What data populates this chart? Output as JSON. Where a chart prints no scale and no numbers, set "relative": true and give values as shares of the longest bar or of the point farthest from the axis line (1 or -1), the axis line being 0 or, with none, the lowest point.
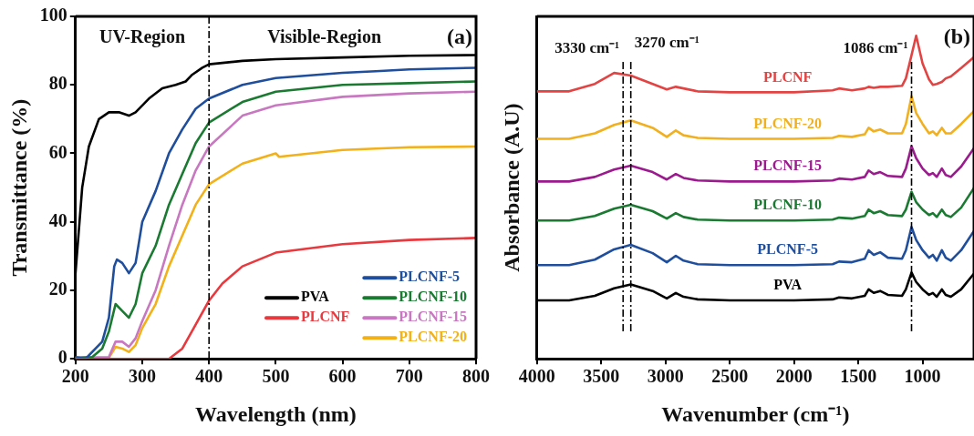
{
  "chart_data": [
    {
      "type": "line",
      "title": "(a)",
      "xlabel": "Wavelength (nm)",
      "ylabel": "Transmittance (%)",
      "xlim": [
        200,
        800
      ],
      "xticks": [
        200,
        300,
        400,
        500,
        600,
        700,
        800
      ],
      "ylim": [
        0,
        100
      ],
      "yticks": [
        0,
        20,
        40,
        60,
        80,
        100
      ],
      "legend": "bottom right",
      "marker": "none",
      "line_style": "solid",
      "ref_lines": [
        {
          "axis": "x",
          "value": 400,
          "line_style": "dashed",
          "color": "#000000"
        }
      ],
      "annotations": [
        "UV-Region",
        "Visible-Region"
      ],
      "series": [
        {
          "name": "PVA",
          "color": "#000000",
          "x": [
            200,
            210,
            220,
            235,
            250,
            265,
            280,
            290,
            310,
            330,
            350,
            365,
            375,
            390,
            400,
            450,
            500,
            600,
            700,
            800
          ],
          "values": [
            25,
            50,
            62,
            70,
            72,
            72,
            71,
            72,
            76,
            79,
            80,
            81,
            83,
            85,
            86,
            87,
            87.5,
            88,
            88.5,
            88.7
          ]
        },
        {
          "name": "PLCNF",
          "color": "#e8393f",
          "x": [
            200,
            340,
            360,
            380,
            400,
            420,
            450,
            500,
            600,
            700,
            800
          ],
          "values": [
            0,
            0,
            3,
            10,
            17,
            22,
            27,
            31,
            33.5,
            34.7,
            35.3
          ]
        },
        {
          "name": "PLCNF-5",
          "color": "#1f4e9c",
          "x": [
            200,
            215,
            240,
            250,
            258,
            262,
            270,
            280,
            290,
            300,
            320,
            340,
            360,
            380,
            400,
            450,
            500,
            600,
            650,
            700,
            800
          ],
          "values": [
            0.5,
            0,
            5,
            12,
            27,
            29,
            28,
            25,
            28,
            40,
            49,
            60,
            67,
            73,
            76,
            80,
            82,
            83.5,
            84,
            84.5,
            85
          ]
        },
        {
          "name": "PLCNF-10",
          "color": "#1a7a32",
          "x": [
            200,
            225,
            240,
            250,
            260,
            270,
            280,
            290,
            300,
            320,
            340,
            360,
            380,
            400,
            450,
            500,
            600,
            700,
            800
          ],
          "values": [
            0.3,
            0.5,
            3,
            8,
            16,
            14,
            12,
            16,
            25,
            33,
            45,
            54,
            63,
            69,
            75,
            78,
            80,
            80.5,
            81
          ]
        },
        {
          "name": "PLCNF-15",
          "color": "#c878c0",
          "x": [
            200,
            250,
            260,
            270,
            280,
            290,
            300,
            320,
            340,
            360,
            380,
            400,
            450,
            500,
            600,
            700,
            800
          ],
          "values": [
            0.3,
            0.5,
            5,
            5,
            3.5,
            6,
            11,
            20,
            33,
            45,
            55,
            62,
            71,
            74,
            76.5,
            77.5,
            78
          ]
        },
        {
          "name": "PLCNF-20",
          "color": "#f2b019",
          "x": [
            200,
            250,
            260,
            270,
            280,
            290,
            300,
            320,
            340,
            360,
            380,
            400,
            450,
            500,
            505,
            600,
            700,
            800
          ],
          "values": [
            0.2,
            0.3,
            3.5,
            3,
            2,
            4,
            9,
            16,
            27,
            36,
            45,
            51,
            57,
            60,
            59,
            61,
            61.8,
            62
          ]
        }
      ]
    },
    {
      "type": "line",
      "title": "(b)",
      "xlabel": "Wavenumber (cm⁻¹)",
      "ylabel": "Absorbance (A.U)",
      "relative": true,
      "xlim": [
        4000,
        600
      ],
      "xticks": [
        4000,
        3500,
        3000,
        2500,
        2000,
        1500,
        1000
      ],
      "legend": false,
      "marker": "none",
      "line_style": "solid",
      "ref_lines": [
        {
          "axis": "x",
          "value": 3330,
          "label": "3330 cm⁻¹",
          "line_style": "dashed",
          "color": "#000000"
        },
        {
          "axis": "x",
          "value": 3270,
          "label": "3270 cm⁻¹",
          "line_style": "dashed",
          "color": "#000000"
        },
        {
          "axis": "x",
          "value": 1086,
          "label": "1086 cm⁻¹",
          "line_style": "dashed",
          "color": "#000000"
        }
      ],
      "x": [
        4000,
        3750,
        3550,
        3400,
        3270,
        3100,
        2990,
        2920,
        2860,
        2750,
        2500,
        2000,
        1700,
        1650,
        1550,
        1450,
        1420,
        1380,
        1330,
        1270,
        1160,
        1130,
        1086,
        1050,
        1000,
        950,
        920,
        890,
        850,
        820,
        780,
        700,
        600
      ],
      "series": [
        {
          "name": "PLCNF",
          "color": "#e24444",
          "values": [
            0.828,
            0.828,
            0.851,
            0.885,
            0.877,
            0.851,
            0.834,
            0.842,
            0.837,
            0.828,
            0.825,
            0.825,
            0.831,
            0.837,
            0.831,
            0.837,
            0.842,
            0.839,
            0.842,
            0.842,
            0.845,
            0.868,
            0.94,
            1.0,
            0.914,
            0.865,
            0.848,
            0.851,
            0.857,
            0.868,
            0.874,
            0.9,
            0.934
          ]
        },
        {
          "name": "PLCNF-20",
          "color": "#f0b020",
          "values": [
            0.681,
            0.681,
            0.698,
            0.724,
            0.738,
            0.715,
            0.687,
            0.707,
            0.692,
            0.684,
            0.681,
            0.681,
            0.684,
            0.69,
            0.687,
            0.695,
            0.715,
            0.704,
            0.71,
            0.698,
            0.698,
            0.727,
            0.813,
            0.761,
            0.727,
            0.698,
            0.704,
            0.692,
            0.715,
            0.698,
            0.698,
            0.727,
            0.767
          ]
        },
        {
          "name": "PLCNF-15",
          "color": "#9b1a8e",
          "values": [
            0.549,
            0.549,
            0.563,
            0.586,
            0.598,
            0.578,
            0.555,
            0.572,
            0.56,
            0.552,
            0.549,
            0.549,
            0.552,
            0.558,
            0.555,
            0.563,
            0.583,
            0.572,
            0.578,
            0.566,
            0.563,
            0.589,
            0.658,
            0.621,
            0.589,
            0.569,
            0.575,
            0.563,
            0.589,
            0.569,
            0.563,
            0.595,
            0.652
          ]
        },
        {
          "name": "PLCNF-10",
          "color": "#1a7a32",
          "values": [
            0.428,
            0.428,
            0.442,
            0.465,
            0.477,
            0.457,
            0.434,
            0.451,
            0.439,
            0.431,
            0.428,
            0.428,
            0.431,
            0.437,
            0.434,
            0.442,
            0.462,
            0.451,
            0.457,
            0.445,
            0.442,
            0.462,
            0.517,
            0.485,
            0.462,
            0.445,
            0.451,
            0.439,
            0.462,
            0.445,
            0.439,
            0.468,
            0.529
          ]
        },
        {
          "name": "PLCNF-5",
          "color": "#1f4e9c",
          "values": [
            0.29,
            0.29,
            0.307,
            0.339,
            0.353,
            0.327,
            0.299,
            0.319,
            0.304,
            0.293,
            0.29,
            0.29,
            0.293,
            0.301,
            0.299,
            0.31,
            0.336,
            0.322,
            0.33,
            0.313,
            0.31,
            0.336,
            0.408,
            0.368,
            0.336,
            0.313,
            0.322,
            0.304,
            0.336,
            0.313,
            0.304,
            0.336,
            0.396
          ]
        },
        {
          "name": "PVA",
          "color": "#000000",
          "values": [
            0.181,
            0.181,
            0.195,
            0.218,
            0.23,
            0.21,
            0.187,
            0.204,
            0.192,
            0.184,
            0.181,
            0.181,
            0.184,
            0.19,
            0.187,
            0.195,
            0.215,
            0.204,
            0.21,
            0.198,
            0.195,
            0.215,
            0.267,
            0.238,
            0.215,
            0.198,
            0.204,
            0.192,
            0.215,
            0.198,
            0.192,
            0.215,
            0.264
          ]
        }
      ]
    }
  ]
}
